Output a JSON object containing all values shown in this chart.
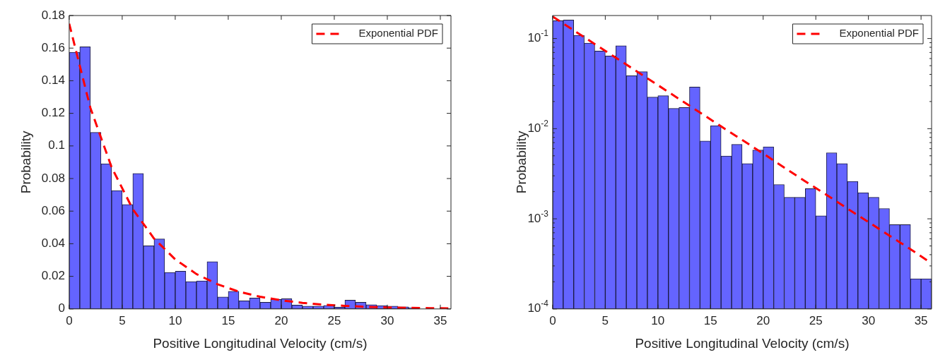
{
  "chart_data": [
    {
      "type": "histogram",
      "xlabel": "Positive Longitudinal Velocity (cm/s)",
      "ylabel": "Probability",
      "color": "#6464ff",
      "bins": [
        0,
        1,
        2,
        3,
        4,
        5,
        6,
        7,
        8,
        9,
        10,
        11,
        12,
        13,
        14,
        15,
        16,
        17,
        18,
        19,
        20,
        21,
        22,
        23,
        24,
        25,
        26,
        27,
        28,
        29,
        30,
        31,
        32,
        33,
        34,
        35,
        36
      ],
      "values": [
        0.1575,
        0.1608,
        0.1083,
        0.0891,
        0.0726,
        0.0641,
        0.0831,
        0.0387,
        0.0429,
        0.0224,
        0.0232,
        0.0168,
        0.0172,
        0.029,
        0.0073,
        0.0108,
        0.005,
        0.0067,
        0.0041,
        0.0058,
        0.0063,
        0.0024,
        0.0017,
        0.0017,
        0.0022,
        0.0011,
        0.0054,
        0.0041,
        0.0026,
        0.002,
        0.0017,
        0.0013,
        0.0009,
        null,
        null,
        null
      ],
      "series": [
        {
          "name": "Exponential PDF",
          "type": "line",
          "color": "#ff0000",
          "line_style": "dashed",
          "x": [
            0,
            2,
            4,
            6,
            8,
            10,
            12,
            14,
            16,
            18,
            20,
            22,
            24,
            26,
            28,
            30,
            32,
            34,
            36
          ],
          "values": [
            0.175,
            0.1233,
            0.0869,
            0.0612,
            0.0432,
            0.0304,
            0.0214,
            0.0151,
            0.0106,
            0.0075,
            0.0053,
            0.0037,
            0.0026,
            0.0019,
            0.0013,
            0.0009,
            0.0007,
            0.0005,
            0.0003
          ]
        }
      ],
      "xlim": [
        0,
        36
      ],
      "xticks": [
        0,
        5,
        10,
        15,
        20,
        25,
        30,
        35
      ],
      "ylim": [
        0,
        0.18
      ],
      "yticks": [
        0,
        0.02,
        0.04,
        0.06,
        0.08,
        0.1,
        0.12,
        0.14,
        0.16,
        0.18
      ],
      "grid": false,
      "legend": "top right"
    },
    {
      "type": "histogram",
      "xlabel": "Positive Longitudinal Velocity (cm/s)",
      "ylabel": "Probability",
      "color": "#6464ff",
      "log": "y",
      "bins": [
        0,
        1,
        2,
        3,
        4,
        5,
        6,
        7,
        8,
        9,
        10,
        11,
        12,
        13,
        14,
        15,
        16,
        17,
        18,
        19,
        20,
        21,
        22,
        23,
        24,
        25,
        26,
        27,
        28,
        29,
        30,
        31,
        32,
        33,
        34,
        35,
        36
      ],
      "values": [
        0.158,
        0.1608,
        0.1083,
        0.0891,
        0.0726,
        0.0641,
        0.0831,
        0.0387,
        0.0429,
        0.0224,
        0.0232,
        0.0168,
        0.0172,
        0.029,
        0.0073,
        0.0108,
        0.00497,
        0.0067,
        0.0041,
        0.0058,
        0.0063,
        0.0024,
        0.00173,
        0.00173,
        0.00216,
        0.00108,
        0.0054,
        0.0041,
        0.0026,
        0.00195,
        0.00173,
        0.0013,
        0.00086,
        0.00086,
        0.000216,
        0.000216
      ],
      "series": [
        {
          "name": "Exponential PDF",
          "type": "line",
          "color": "#ff0000",
          "line_style": "dashed",
          "x": [
            0,
            2,
            4,
            6,
            8,
            10,
            12,
            14,
            16,
            18,
            20,
            22,
            24,
            26,
            28,
            30,
            32,
            34,
            36
          ],
          "values": [
            0.175,
            0.1233,
            0.0869,
            0.0612,
            0.0432,
            0.0304,
            0.0214,
            0.0151,
            0.0106,
            0.0075,
            0.0053,
            0.0037,
            0.0026,
            0.00185,
            0.0013,
            0.00092,
            0.00065,
            0.00046,
            0.00032
          ]
        }
      ],
      "xlim": [
        0,
        36
      ],
      "xticks": [
        0,
        5,
        10,
        15,
        20,
        25,
        30,
        35
      ],
      "ylim": [
        0.0001,
        0.18
      ],
      "yticks": [
        {
          "value": 0.0001,
          "label": "10$^{-4}$"
        },
        {
          "value": 0.0002,
          "label": null
        },
        {
          "value": 0.0003,
          "label": null
        },
        {
          "value": 0.0004,
          "label": null
        },
        {
          "value": 0.0005,
          "label": null
        },
        {
          "value": 0.0006,
          "label": null
        },
        {
          "value": 0.0007,
          "label": null
        },
        {
          "value": 0.0008,
          "label": null
        },
        {
          "value": 0.0009,
          "label": null
        },
        {
          "value": 0.001,
          "label": "10$^{-3}$"
        },
        {
          "value": 0.002,
          "label": null
        },
        {
          "value": 0.003,
          "label": null
        },
        {
          "value": 0.004,
          "label": null
        },
        {
          "value": 0.005,
          "label": null
        },
        {
          "value": 0.006,
          "label": null
        },
        {
          "value": 0.007,
          "label": null
        },
        {
          "value": 0.008,
          "label": null
        },
        {
          "value": 0.009,
          "label": null
        },
        {
          "value": 0.01,
          "label": "10$^{-2}$"
        },
        {
          "value": 0.02,
          "label": null
        },
        {
          "value": 0.03,
          "label": null
        },
        {
          "value": 0.04,
          "label": null
        },
        {
          "value": 0.05,
          "label": null
        },
        {
          "value": 0.06,
          "label": null
        },
        {
          "value": 0.07,
          "label": null
        },
        {
          "value": 0.08,
          "label": null
        },
        {
          "value": 0.09,
          "label": null
        },
        {
          "value": 0.1,
          "label": "10$^{-1}$"
        }
      ],
      "grid": false,
      "legend": "top right"
    }
  ]
}
